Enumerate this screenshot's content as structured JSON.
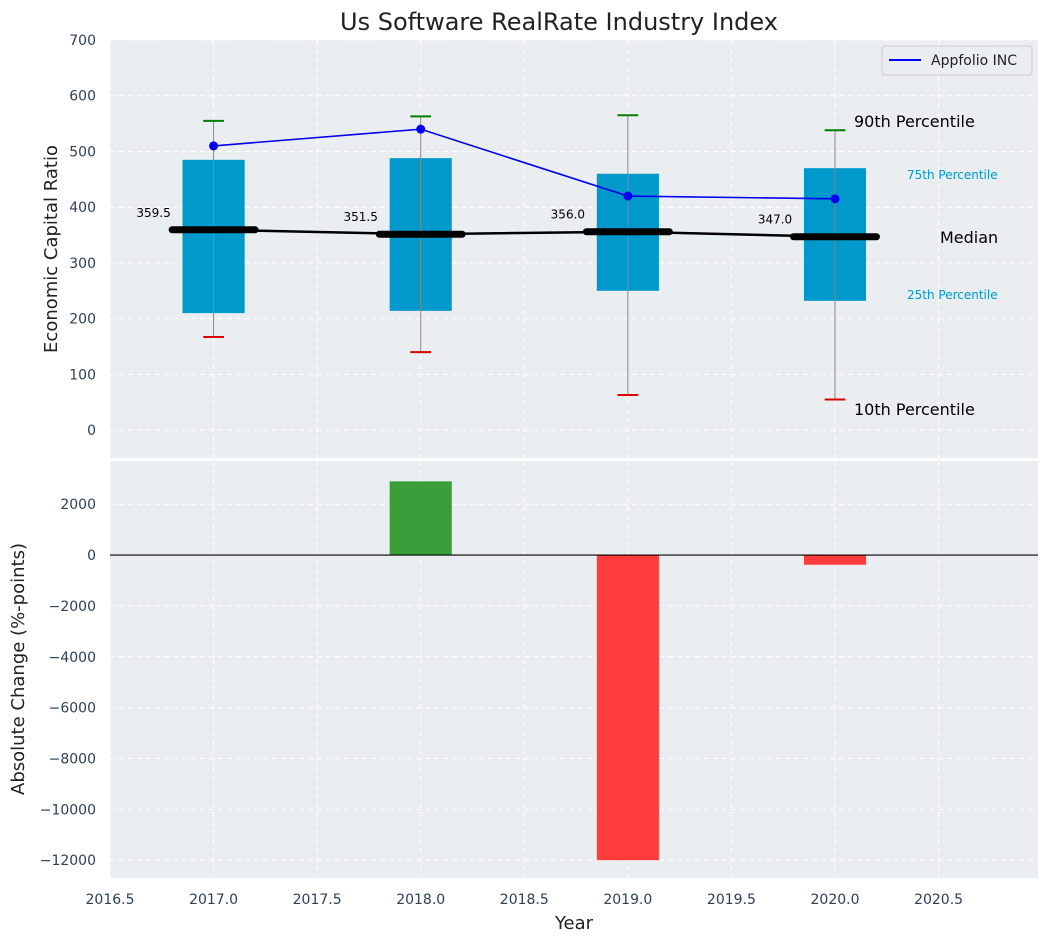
{
  "title": "Us Software RealRate Industry Index",
  "colors": {
    "panel_bg": "#eaeef0",
    "box": "#0099cc",
    "median": "#000000",
    "company": "#0000ee",
    "p90_cap": "#008000",
    "p10_cap": "#dd0000",
    "bar_up": "#3a9e3a",
    "bar_down": "#ff3b3b",
    "tick_text": "#2e3f55"
  },
  "chart_data": [
    {
      "type": "box",
      "ylabel": "Economic Capital Ratio",
      "ylim": [
        -50,
        700
      ],
      "yticks": [
        "0",
        "100",
        "200",
        "300",
        "400",
        "500",
        "600",
        "700"
      ],
      "ytick_values": [
        0,
        100,
        200,
        300,
        400,
        500,
        600,
        700
      ],
      "xlim": [
        2016.5,
        2020.98
      ],
      "grid": true,
      "x": [
        2017,
        2018,
        2019,
        2020
      ],
      "percentile_10": [
        167,
        140,
        63,
        55
      ],
      "percentile_25": [
        210,
        214,
        250,
        232
      ],
      "median": [
        359.5,
        351.5,
        356.0,
        347.0
      ],
      "median_labels": [
        "359.5",
        "351.5",
        "356.0",
        "347.0"
      ],
      "percentile_75": [
        485,
        488,
        460,
        470
      ],
      "percentile_90": [
        555,
        563,
        565,
        538
      ],
      "series": [
        {
          "name": "Appfolio INC",
          "values": [
            510,
            540,
            420,
            415
          ]
        }
      ],
      "legend": {
        "position": "top-right",
        "label": "Appfolio INC"
      },
      "annotations": {
        "p90": "90th Percentile",
        "p75": "75th Percentile",
        "median": "Median",
        "p25": "25th Percentile",
        "p10": "10th Percentile"
      }
    },
    {
      "type": "bar",
      "xlabel": "Year",
      "ylabel": "Absolute Change (%-points)",
      "ylim": [
        -12700,
        3700
      ],
      "yticks": [
        "−12000",
        "−10000",
        "−8000",
        "−6000",
        "−4000",
        "−2000",
        "0",
        "2000"
      ],
      "ytick_values": [
        -12000,
        -10000,
        -8000,
        -6000,
        -4000,
        -2000,
        0,
        2000
      ],
      "xlim": [
        2016.5,
        2020.98
      ],
      "xticks": [
        "2016.5",
        "2017.0",
        "2017.5",
        "2018.0",
        "2018.5",
        "2019.0",
        "2019.5",
        "2020.0",
        "2020.5"
      ],
      "xtick_values": [
        2016.5,
        2017.0,
        2017.5,
        2018.0,
        2018.5,
        2019.0,
        2019.5,
        2020.0,
        2020.5
      ],
      "grid": true,
      "x": [
        2018,
        2019,
        2020
      ],
      "values": [
        2900,
        -12000,
        -380
      ]
    }
  ]
}
